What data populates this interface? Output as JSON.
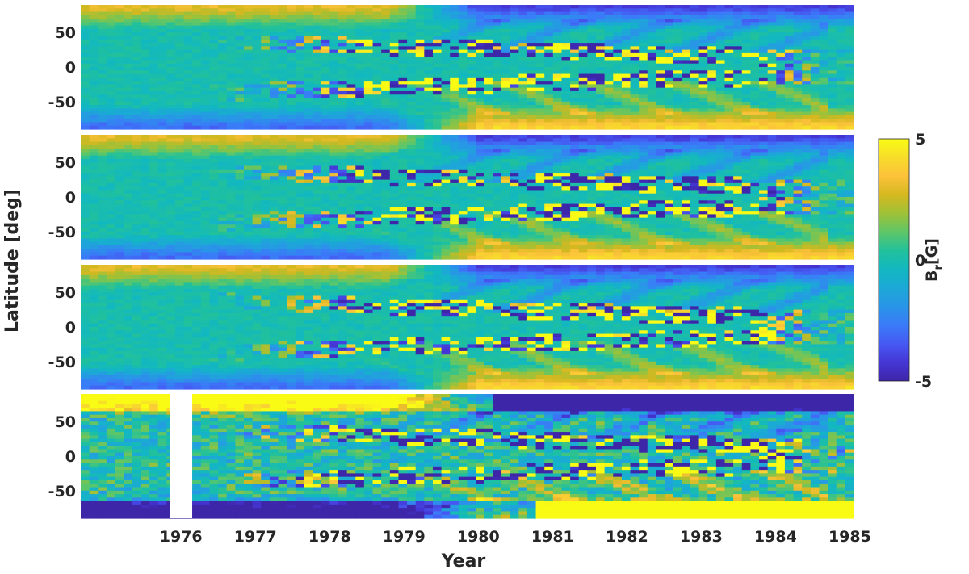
{
  "chart_data": {
    "type": "heatmap",
    "panels": 4,
    "xlabel": "Year",
    "ylabel": "Latitude [deg]",
    "xlim": [
      1975.15,
      1985.55
    ],
    "ylim": [
      -90,
      90
    ],
    "x_ticks": [
      {
        "value": 1976,
        "label": "1976"
      },
      {
        "value": 1977,
        "label": "1977"
      },
      {
        "value": 1978,
        "label": "1978"
      },
      {
        "value": 1979,
        "label": "1979"
      },
      {
        "value": 1980,
        "label": "1980"
      },
      {
        "value": 1981,
        "label": "1981"
      },
      {
        "value": 1982,
        "label": "1982"
      },
      {
        "value": 1983,
        "label": "1983"
      },
      {
        "value": 1984,
        "label": "1984"
      },
      {
        "value": 1985,
        "label": "1985"
      }
    ],
    "y_ticks": [
      {
        "value": 50,
        "label": "50"
      },
      {
        "value": 0,
        "label": "0"
      },
      {
        "value": -50,
        "label": "-50"
      }
    ],
    "colorbar": {
      "label_main": "B",
      "label_sub": "r",
      "label_unit": "[G]",
      "range": [
        -5,
        5
      ],
      "ticks": [
        {
          "value": 5,
          "label": "5"
        },
        {
          "value": 0,
          "label": "0"
        },
        {
          "value": -5,
          "label": "-5"
        }
      ],
      "colormap": [
        "#3e26a8",
        "#4536d5",
        "#4659f2",
        "#3a7bf8",
        "#2995e7",
        "#1ca8d7",
        "#12b8c0",
        "#21c19b",
        "#5ec668",
        "#9fc137",
        "#d5b81f",
        "#fcc23b",
        "#f7dd2a",
        "#f9fb15"
      ]
    },
    "data_gap": {
      "panel": 4,
      "x_range": [
        1976.35,
        1976.65
      ]
    },
    "grid": false,
    "legend": "none"
  }
}
